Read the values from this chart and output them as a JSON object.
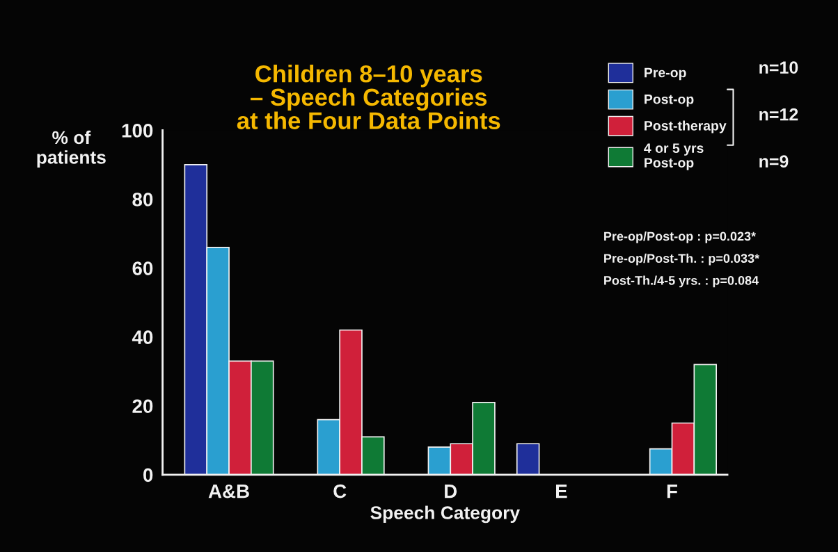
{
  "chart_data": {
    "type": "bar",
    "title": "Children 8–10 years\n– Speech Categories\nat the Four Data Points",
    "xlabel": "Speech Category",
    "ylabel": "% of\npatients",
    "categories": [
      "A&B",
      "C",
      "D",
      "E",
      "F"
    ],
    "series": [
      {
        "name": "Pre-op",
        "color": "#1f2f9a",
        "values": [
          90,
          null,
          null,
          9,
          null
        ]
      },
      {
        "name": "Post-op",
        "color": "#2a9fd0",
        "values": [
          66,
          16,
          8,
          null,
          7.5
        ]
      },
      {
        "name": "Post-therapy",
        "color": "#d0203a",
        "values": [
          33,
          42,
          9,
          null,
          15
        ]
      },
      {
        "name": "4 or 5 yrs\nPost-op",
        "color": "#0f7a35",
        "values": [
          33,
          11,
          21,
          null,
          32
        ]
      }
    ],
    "ylim": [
      0,
      100
    ],
    "yticks": [
      0,
      20,
      40,
      60,
      80,
      100
    ],
    "grid": false,
    "legend": "top right",
    "annotations": [
      "n=10",
      "n=12",
      "n=9",
      "Pre-op/Post-op : p=0.023*",
      "Pre-op/Post-Th. : p=0.033*",
      "Post-Th./4-5 yrs. : p=0.084"
    ]
  }
}
